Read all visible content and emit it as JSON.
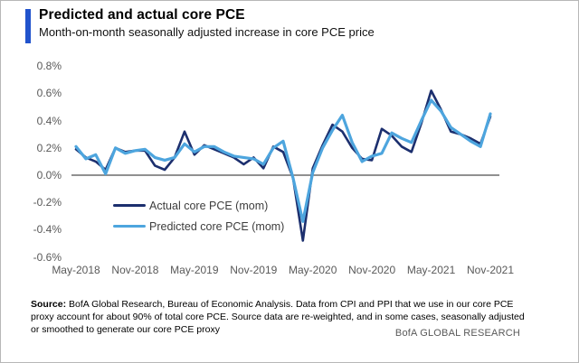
{
  "header": {
    "title": "Predicted and actual core PCE",
    "subtitle": "Month-on-month seasonally adjusted increase in core PCE price",
    "accent_color": "#2153cc"
  },
  "chart_data": {
    "type": "line",
    "x": [
      "May-2018",
      "Jun-2018",
      "Jul-2018",
      "Aug-2018",
      "Sep-2018",
      "Oct-2018",
      "Nov-2018",
      "Dec-2018",
      "Jan-2019",
      "Feb-2019",
      "Mar-2019",
      "Apr-2019",
      "May-2019",
      "Jun-2019",
      "Jul-2019",
      "Aug-2019",
      "Sep-2019",
      "Oct-2019",
      "Nov-2019",
      "Dec-2019",
      "Jan-2020",
      "Feb-2020",
      "Mar-2020",
      "Apr-2020",
      "May-2020",
      "Jun-2020",
      "Jul-2020",
      "Aug-2020",
      "Sep-2020",
      "Oct-2020",
      "Nov-2020",
      "Dec-2020",
      "Jan-2021",
      "Feb-2021",
      "Mar-2021",
      "Apr-2021",
      "May-2021",
      "Jun-2021",
      "Jul-2021",
      "Aug-2021",
      "Sep-2021",
      "Oct-2021",
      "Nov-2021"
    ],
    "x_tick_labels": [
      "May-2018",
      "Nov-2018",
      "May-2019",
      "Nov-2019",
      "May-2020",
      "Nov-2020",
      "May-2021",
      "Nov-2021"
    ],
    "x_tick_indices": [
      0,
      6,
      12,
      18,
      24,
      30,
      36,
      42
    ],
    "y_tick_labels": [
      "0.8%",
      "0.6%",
      "0.4%",
      "0.2%",
      "0.0%",
      "-0.2%",
      "-0.4%",
      "-0.6%"
    ],
    "y_tick_values": [
      0.8,
      0.6,
      0.4,
      0.2,
      0.0,
      -0.2,
      -0.4,
      -0.6
    ],
    "ylim": [
      -0.6,
      0.8
    ],
    "unit": "%",
    "grid": "zero-line-only",
    "zero_line_color": "#808080",
    "legend_position": "inside-left-bottom",
    "series": [
      {
        "name": "Actual core PCE (mom)",
        "color": "#1c2f6e",
        "values": [
          0.19,
          0.13,
          0.1,
          0.04,
          0.2,
          0.17,
          0.18,
          0.18,
          0.07,
          0.04,
          0.13,
          0.32,
          0.15,
          0.22,
          0.19,
          0.16,
          0.13,
          0.08,
          0.13,
          0.05,
          0.21,
          0.17,
          -0.02,
          -0.48,
          0.05,
          0.22,
          0.37,
          0.32,
          0.2,
          0.12,
          0.11,
          0.34,
          0.29,
          0.21,
          0.17,
          0.38,
          0.62,
          0.48,
          0.32,
          0.3,
          0.27,
          0.23,
          0.43
        ]
      },
      {
        "name": "Predicted core PCE (mom)",
        "color": "#4da5de",
        "values": [
          0.21,
          0.12,
          0.15,
          0.01,
          0.2,
          0.16,
          0.18,
          0.19,
          0.13,
          0.11,
          0.13,
          0.23,
          0.17,
          0.21,
          0.21,
          0.17,
          0.14,
          0.13,
          0.12,
          0.08,
          0.2,
          0.25,
          -0.02,
          -0.34,
          0.02,
          0.2,
          0.33,
          0.44,
          0.24,
          0.1,
          0.14,
          0.16,
          0.31,
          0.27,
          0.24,
          0.4,
          0.55,
          0.47,
          0.35,
          0.3,
          0.25,
          0.21,
          0.45
        ]
      }
    ]
  },
  "footer": {
    "source_label": "Source:",
    "source_text": " BofA Global Research, Bureau of Economic Analysis. Data from CPI and PPI that we use in our core PCE proxy account for about 90% of total core PCE. Source data are re-weighted, and in some cases, seasonally adjusted or smoothed to generate our core PCE proxy",
    "brand": "BofA GLOBAL RESEARCH"
  }
}
